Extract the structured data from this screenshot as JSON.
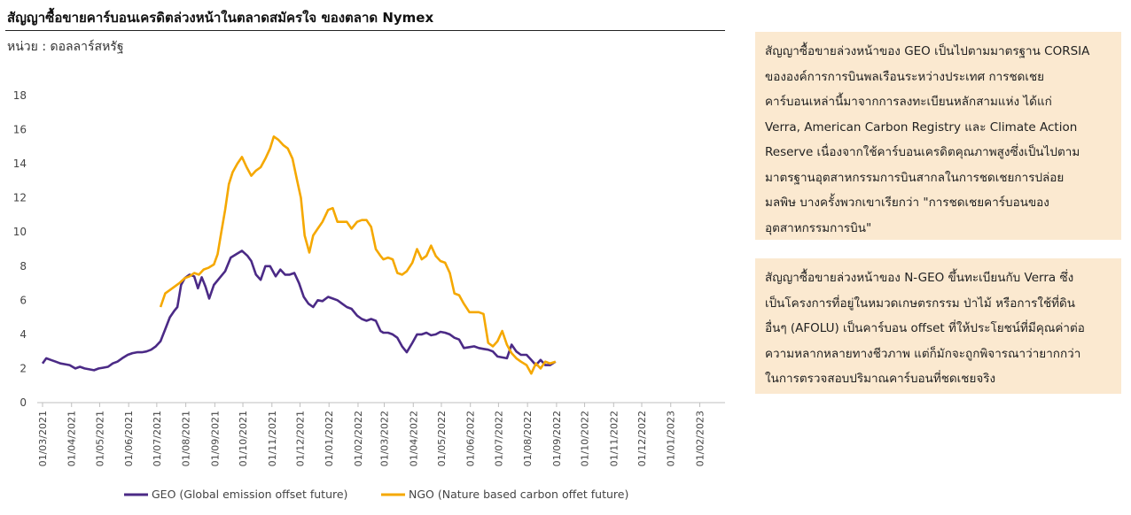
{
  "page": {
    "title": "สัญญาซื้อขายคาร์บอนเครดิตล่วงหน้าในตลาดสมัครใจ ของตลาด Nymex",
    "unit": "หน่วย : ดอลลาร์สหรัฐ"
  },
  "notes": [
    {
      "lines": [
        "สัญญาซื้อขายล่วงหน้าของ GEO เป็นไปตามมาตรฐาน CORSIA",
        "ขององค์การการบินพลเรือนระหว่างประเทศ การชดเชย",
        "คาร์บอนเหล่านี้มาจากการลงทะเบียนหลักสามแห่ง ได้แก่",
        "Verra, American Carbon Registry และ Climate Action",
        "Reserve เนื่องจากใช้คาร์บอนเครดิตคุณภาพสูงซึ่งเป็นไปตาม",
        "มาตรฐานอุตสาหกรรมการบินสากลในการชดเชยการปล่อย",
        "มลพิษ บางครั้งพวกเขาเรียกว่า \"การชดเชยคาร์บอนของ",
        "อุตสาหกรรมการบิน\""
      ]
    },
    {
      "lines": [
        "สัญญาซื้อขายล่วงหน้าของ N-GEO ขึ้นทะเบียนกับ Verra ซึ่ง",
        "เป็นโครงการที่อยู่ในหมวดเกษตรกรรม ป่าไม้ หรือการใช้ที่ดิน",
        "อื่นๆ (AFOLU) เป็นคาร์บอน offset ที่ให้ประโยชน์ที่มีคุณค่าต่อ",
        "ความหลากหลายทางชีวภาพ แต่ก็มักจะถูกพิจารณาว่ายากกว่า",
        "ในการตรวจสอบปริมาณคาร์บอนที่ชดเชยจริง"
      ]
    }
  ],
  "chart_data": {
    "type": "line",
    "ylim": [
      0,
      18
    ],
    "yticks": [
      "0",
      "2",
      "4",
      "6",
      "8",
      "10",
      "12",
      "14",
      "16",
      "18"
    ],
    "xlim": [
      "2021-03-01",
      "2023-02-28"
    ],
    "xtick_labels": [
      "01/03/2021",
      "01/04/2021",
      "01/05/2021",
      "01/06/2021",
      "01/07/2021",
      "01/08/2021",
      "01/09/2021",
      "01/10/2021",
      "01/11/2021",
      "01/12/2021",
      "01/01/2022",
      "01/02/2022",
      "01/03/2022",
      "01/04/2022",
      "01/05/2022",
      "01/06/2022",
      "01/07/2022",
      "01/08/2022",
      "01/09/2022",
      "01/10/2022",
      "01/11/2022",
      "01/12/2022",
      "01/01/2023",
      "01/02/2023"
    ],
    "grid": false,
    "legend_position": "bottom",
    "series": [
      {
        "name": "GEO (Global emission offset future)",
        "color": "#4b2a86",
        "points": [
          [
            "2021-03-01",
            2.3
          ],
          [
            "2021-03-05",
            2.6
          ],
          [
            "2021-03-10",
            2.5
          ],
          [
            "2021-03-15",
            2.4
          ],
          [
            "2021-03-20",
            2.3
          ],
          [
            "2021-03-25",
            2.25
          ],
          [
            "2021-03-30",
            2.2
          ],
          [
            "2021-04-05",
            2.0
          ],
          [
            "2021-04-10",
            2.1
          ],
          [
            "2021-04-15",
            2.0
          ],
          [
            "2021-04-20",
            1.95
          ],
          [
            "2021-04-25",
            1.9
          ],
          [
            "2021-04-30",
            2.0
          ],
          [
            "2021-05-05",
            2.05
          ],
          [
            "2021-05-10",
            2.1
          ],
          [
            "2021-05-15",
            2.3
          ],
          [
            "2021-05-20",
            2.4
          ],
          [
            "2021-05-25",
            2.6
          ],
          [
            "2021-05-31",
            2.8
          ],
          [
            "2021-06-05",
            2.9
          ],
          [
            "2021-06-10",
            2.95
          ],
          [
            "2021-06-15",
            2.95
          ],
          [
            "2021-06-20",
            3.0
          ],
          [
            "2021-06-25",
            3.1
          ],
          [
            "2021-06-30",
            3.3
          ],
          [
            "2021-07-05",
            3.6
          ],
          [
            "2021-07-10",
            4.3
          ],
          [
            "2021-07-15",
            5.0
          ],
          [
            "2021-07-20",
            5.4
          ],
          [
            "2021-07-23",
            5.6
          ],
          [
            "2021-07-27",
            6.9
          ],
          [
            "2021-07-31",
            7.3
          ],
          [
            "2021-08-05",
            7.5
          ],
          [
            "2021-08-10",
            7.4
          ],
          [
            "2021-08-14",
            6.7
          ],
          [
            "2021-08-18",
            7.35
          ],
          [
            "2021-08-22",
            6.8
          ],
          [
            "2021-08-26",
            6.1
          ],
          [
            "2021-08-31",
            6.9
          ],
          [
            "2021-09-06",
            7.3
          ],
          [
            "2021-09-12",
            7.7
          ],
          [
            "2021-09-18",
            8.5
          ],
          [
            "2021-09-24",
            8.7
          ],
          [
            "2021-09-30",
            8.9
          ],
          [
            "2021-10-06",
            8.6
          ],
          [
            "2021-10-10",
            8.3
          ],
          [
            "2021-10-15",
            7.5
          ],
          [
            "2021-10-20",
            7.2
          ],
          [
            "2021-10-25",
            8.0
          ],
          [
            "2021-10-30",
            8.0
          ],
          [
            "2021-11-05",
            7.4
          ],
          [
            "2021-11-10",
            7.8
          ],
          [
            "2021-11-15",
            7.5
          ],
          [
            "2021-11-20",
            7.5
          ],
          [
            "2021-11-25",
            7.6
          ],
          [
            "2021-11-30",
            7.0
          ],
          [
            "2021-12-05",
            6.2
          ],
          [
            "2021-12-10",
            5.8
          ],
          [
            "2021-12-15",
            5.6
          ],
          [
            "2021-12-20",
            6.0
          ],
          [
            "2021-12-25",
            5.95
          ],
          [
            "2021-12-31",
            6.2
          ],
          [
            "2022-01-05",
            6.1
          ],
          [
            "2022-01-10",
            6.0
          ],
          [
            "2022-01-15",
            5.8
          ],
          [
            "2022-01-20",
            5.6
          ],
          [
            "2022-01-25",
            5.5
          ],
          [
            "2022-01-31",
            5.1
          ],
          [
            "2022-02-05",
            4.9
          ],
          [
            "2022-02-10",
            4.8
          ],
          [
            "2022-02-15",
            4.9
          ],
          [
            "2022-02-20",
            4.8
          ],
          [
            "2022-02-25",
            4.2
          ],
          [
            "2022-02-28",
            4.1
          ],
          [
            "2022-03-05",
            4.1
          ],
          [
            "2022-03-10",
            4.0
          ],
          [
            "2022-03-15",
            3.8
          ],
          [
            "2022-03-20",
            3.3
          ],
          [
            "2022-03-25",
            2.95
          ],
          [
            "2022-03-31",
            3.5
          ],
          [
            "2022-04-05",
            4.0
          ],
          [
            "2022-04-10",
            4.0
          ],
          [
            "2022-04-15",
            4.1
          ],
          [
            "2022-04-20",
            3.95
          ],
          [
            "2022-04-25",
            4.0
          ],
          [
            "2022-04-30",
            4.15
          ],
          [
            "2022-05-05",
            4.1
          ],
          [
            "2022-05-10",
            4.0
          ],
          [
            "2022-05-15",
            3.8
          ],
          [
            "2022-05-20",
            3.7
          ],
          [
            "2022-05-25",
            3.2
          ],
          [
            "2022-05-31",
            3.25
          ],
          [
            "2022-06-05",
            3.3
          ],
          [
            "2022-06-10",
            3.2
          ],
          [
            "2022-06-15",
            3.15
          ],
          [
            "2022-06-20",
            3.1
          ],
          [
            "2022-06-25",
            3.0
          ],
          [
            "2022-06-30",
            2.7
          ],
          [
            "2022-07-05",
            2.65
          ],
          [
            "2022-07-10",
            2.6
          ],
          [
            "2022-07-15",
            3.4
          ],
          [
            "2022-07-20",
            3.0
          ],
          [
            "2022-07-25",
            2.8
          ],
          [
            "2022-07-31",
            2.8
          ],
          [
            "2022-08-05",
            2.5
          ],
          [
            "2022-08-10",
            2.2
          ],
          [
            "2022-08-15",
            2.5
          ],
          [
            "2022-08-20",
            2.2
          ],
          [
            "2022-08-25",
            2.2
          ],
          [
            "2022-08-31",
            2.4
          ]
        ]
      },
      {
        "name": "NGO (Nature based carbon offet future)",
        "color": "#f5a800",
        "points": [
          [
            "2021-07-05",
            5.6
          ],
          [
            "2021-07-10",
            6.4
          ],
          [
            "2021-07-15",
            6.6
          ],
          [
            "2021-07-20",
            6.8
          ],
          [
            "2021-07-25",
            7.0
          ],
          [
            "2021-07-31",
            7.3
          ],
          [
            "2021-08-05",
            7.4
          ],
          [
            "2021-08-10",
            7.6
          ],
          [
            "2021-08-15",
            7.5
          ],
          [
            "2021-08-20",
            7.8
          ],
          [
            "2021-08-25",
            7.9
          ],
          [
            "2021-08-31",
            8.1
          ],
          [
            "2021-09-04",
            8.7
          ],
          [
            "2021-09-08",
            10.0
          ],
          [
            "2021-09-12",
            11.3
          ],
          [
            "2021-09-16",
            12.8
          ],
          [
            "2021-09-20",
            13.5
          ],
          [
            "2021-09-25",
            14.0
          ],
          [
            "2021-09-30",
            14.4
          ],
          [
            "2021-10-05",
            13.8
          ],
          [
            "2021-10-10",
            13.3
          ],
          [
            "2021-10-15",
            13.6
          ],
          [
            "2021-10-20",
            13.8
          ],
          [
            "2021-10-25",
            14.3
          ],
          [
            "2021-10-30",
            14.9
          ],
          [
            "2021-11-03",
            15.6
          ],
          [
            "2021-11-08",
            15.4
          ],
          [
            "2021-11-13",
            15.1
          ],
          [
            "2021-11-18",
            14.9
          ],
          [
            "2021-11-23",
            14.3
          ],
          [
            "2021-11-28",
            13.0
          ],
          [
            "2021-12-02",
            12.0
          ],
          [
            "2021-12-06",
            9.8
          ],
          [
            "2021-12-11",
            8.8
          ],
          [
            "2021-12-15",
            9.8
          ],
          [
            "2021-12-20",
            10.2
          ],
          [
            "2021-12-25",
            10.6
          ],
          [
            "2021-12-31",
            11.3
          ],
          [
            "2022-01-05",
            11.4
          ],
          [
            "2022-01-10",
            10.6
          ],
          [
            "2022-01-15",
            10.6
          ],
          [
            "2022-01-20",
            10.6
          ],
          [
            "2022-01-25",
            10.2
          ],
          [
            "2022-01-31",
            10.6
          ],
          [
            "2022-02-05",
            10.7
          ],
          [
            "2022-02-10",
            10.7
          ],
          [
            "2022-02-15",
            10.3
          ],
          [
            "2022-02-20",
            9.0
          ],
          [
            "2022-02-25",
            8.6
          ],
          [
            "2022-02-28",
            8.4
          ],
          [
            "2022-03-05",
            8.5
          ],
          [
            "2022-03-10",
            8.4
          ],
          [
            "2022-03-15",
            7.6
          ],
          [
            "2022-03-20",
            7.5
          ],
          [
            "2022-03-25",
            7.7
          ],
          [
            "2022-03-31",
            8.2
          ],
          [
            "2022-04-05",
            9.0
          ],
          [
            "2022-04-10",
            8.4
          ],
          [
            "2022-04-15",
            8.6
          ],
          [
            "2022-04-20",
            9.2
          ],
          [
            "2022-04-25",
            8.6
          ],
          [
            "2022-04-30",
            8.3
          ],
          [
            "2022-05-05",
            8.2
          ],
          [
            "2022-05-10",
            7.6
          ],
          [
            "2022-05-15",
            6.4
          ],
          [
            "2022-05-20",
            6.3
          ],
          [
            "2022-05-25",
            5.8
          ],
          [
            "2022-05-31",
            5.3
          ],
          [
            "2022-06-05",
            5.3
          ],
          [
            "2022-06-10",
            5.3
          ],
          [
            "2022-06-15",
            5.2
          ],
          [
            "2022-06-20",
            3.5
          ],
          [
            "2022-06-25",
            3.3
          ],
          [
            "2022-06-30",
            3.6
          ],
          [
            "2022-07-05",
            4.2
          ],
          [
            "2022-07-10",
            3.4
          ],
          [
            "2022-07-15",
            2.9
          ],
          [
            "2022-07-20",
            2.6
          ],
          [
            "2022-07-25",
            2.4
          ],
          [
            "2022-07-31",
            2.2
          ],
          [
            "2022-08-05",
            1.7
          ],
          [
            "2022-08-10",
            2.3
          ],
          [
            "2022-08-15",
            2.0
          ],
          [
            "2022-08-20",
            2.4
          ],
          [
            "2022-08-25",
            2.3
          ],
          [
            "2022-08-31",
            2.4
          ]
        ]
      }
    ]
  }
}
